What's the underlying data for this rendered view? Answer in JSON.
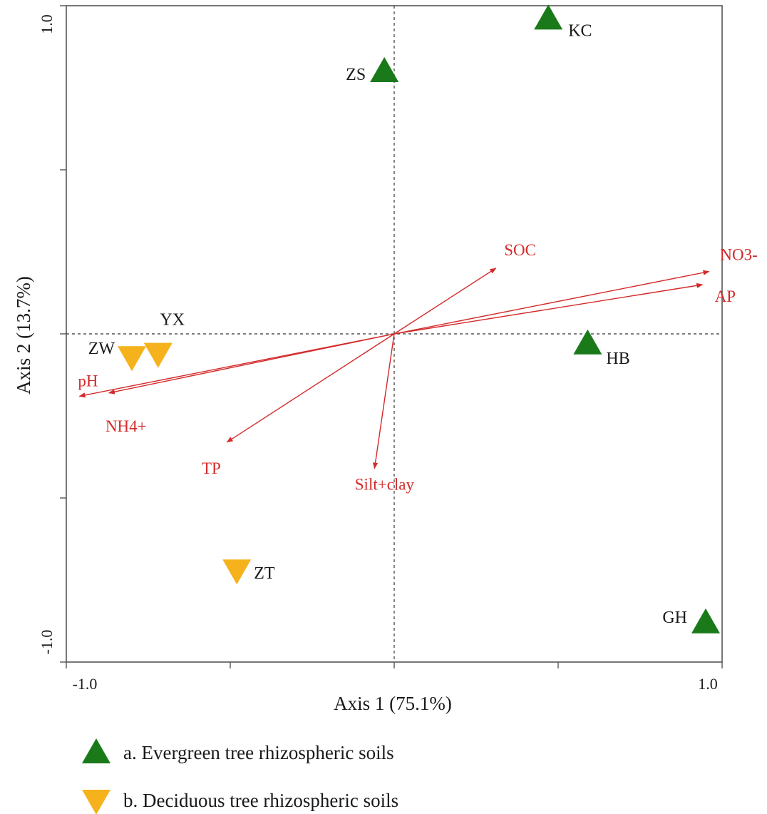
{
  "chart_data": {
    "type": "scatter",
    "subtype": "rda-biplot",
    "title": "",
    "xlabel": "Axis 1 (75.1%)",
    "ylabel": "Axis 2 (13.7%)",
    "xlim": [
      -1.0,
      1.0
    ],
    "ylim": [
      -1.0,
      1.0
    ],
    "xtick_labels": [
      "-1.0",
      "1.0"
    ],
    "ytick_labels": [
      "1.0",
      "-1.0"
    ],
    "minor_ticks": [
      -0.5,
      0,
      0.5
    ],
    "zero_lines": "dashed",
    "grid": false,
    "series": [
      {
        "group": "a",
        "marker": "triangle-up",
        "color": "#1a7a1a",
        "points": [
          {
            "label": "KC",
            "x": 0.47,
            "y": 0.96
          },
          {
            "label": "ZS",
            "x": -0.03,
            "y": 0.8
          },
          {
            "label": "HB",
            "x": 0.59,
            "y": -0.03
          },
          {
            "label": "GH",
            "x": 0.95,
            "y": -0.88
          }
        ]
      },
      {
        "group": "b",
        "marker": "triangle-down",
        "color": "#f5b21c",
        "points": [
          {
            "label": "ZW",
            "x": -0.8,
            "y": -0.07
          },
          {
            "label": "YX",
            "x": -0.72,
            "y": -0.06
          },
          {
            "label": "ZT",
            "x": -0.48,
            "y": -0.72
          }
        ]
      }
    ],
    "vectors": {
      "color": "#d42a2a",
      "items": [
        {
          "label": "SOC",
          "x": 0.31,
          "y": 0.2
        },
        {
          "label": "NO3-",
          "x": 0.96,
          "y": 0.19
        },
        {
          "label": "AP",
          "x": 0.94,
          "y": 0.15
        },
        {
          "label": "pH",
          "x": -0.96,
          "y": -0.19
        },
        {
          "label": "NH4+",
          "x": -0.87,
          "y": -0.18
        },
        {
          "label": "TP",
          "x": -0.51,
          "y": -0.33
        },
        {
          "label": "Silt+clay",
          "x": -0.06,
          "y": -0.41
        }
      ]
    },
    "legend": {
      "position": "bottom-left",
      "items": [
        {
          "marker": "triangle-up",
          "color": "#1a7a1a",
          "text": "a. Evergreen tree rhizospheric soils"
        },
        {
          "marker": "triangle-down",
          "color": "#f5b21c",
          "text": "b. Deciduous tree rhizospheric soils"
        }
      ]
    }
  }
}
